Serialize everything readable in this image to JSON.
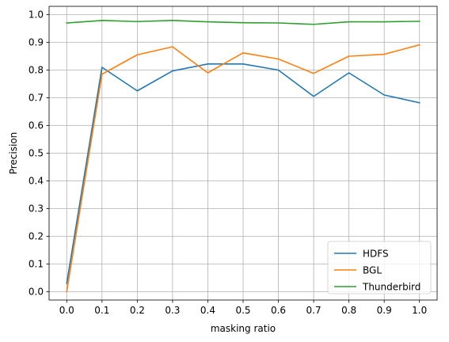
{
  "chart_data": {
    "type": "line",
    "title": "",
    "xlabel": "masking ratio",
    "ylabel": "Precision",
    "x": [
      0.0,
      0.1,
      0.2,
      0.3,
      0.4,
      0.5,
      0.6,
      0.7,
      0.8,
      0.9,
      1.0
    ],
    "x_tick_labels": [
      "0.0",
      "0.1",
      "0.2",
      "0.3",
      "0.4",
      "0.5",
      "0.6",
      "0.7",
      "0.8",
      "0.9",
      "1.0"
    ],
    "y_tick_values": [
      0.0,
      0.1,
      0.2,
      0.3,
      0.4,
      0.5,
      0.6,
      0.7,
      0.8,
      0.9,
      1.0
    ],
    "y_tick_labels": [
      "0.0",
      "0.1",
      "0.2",
      "0.3",
      "0.4",
      "0.5",
      "0.6",
      "0.7",
      "0.8",
      "0.9",
      "1.0"
    ],
    "xlim": [
      -0.05,
      1.05
    ],
    "ylim": [
      -0.03,
      1.03
    ],
    "grid": true,
    "legend_position": "lower right",
    "series": [
      {
        "name": "HDFS",
        "color": "#1f77b4",
        "values": [
          0.03,
          0.81,
          0.725,
          0.797,
          0.822,
          0.822,
          0.8,
          0.705,
          0.79,
          0.71,
          0.682
        ]
      },
      {
        "name": "BGL",
        "color": "#ff7f0e",
        "values": [
          0.0,
          0.785,
          0.855,
          0.884,
          0.79,
          0.862,
          0.84,
          0.788,
          0.85,
          0.857,
          0.891
        ]
      },
      {
        "name": "Thunderbird",
        "color": "#2ca02c",
        "values": [
          0.97,
          0.979,
          0.975,
          0.979,
          0.974,
          0.971,
          0.97,
          0.965,
          0.974,
          0.974,
          0.976
        ]
      }
    ]
  }
}
